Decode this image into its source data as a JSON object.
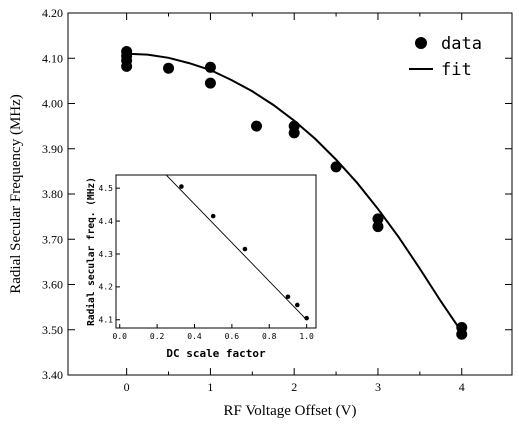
{
  "chart_data": [
    {
      "type": "scatter",
      "xlabel": "RF Voltage Offset (V)",
      "ylabel": "Radial Secular Frequency (MHz)",
      "xlim": [
        -0.7,
        4.6
      ],
      "ylim": [
        3.4,
        4.2
      ],
      "x_ticks": [
        0,
        1,
        2,
        3,
        4
      ],
      "y_ticks": [
        3.4,
        3.5,
        3.6,
        3.7,
        3.8,
        3.9,
        4.0,
        4.1,
        4.2
      ],
      "x_tick_labels": [
        "0",
        "1",
        "2",
        "3",
        "4"
      ],
      "y_tick_labels": [
        "3.40",
        "3.50",
        "3.60",
        "3.70",
        "3.80",
        "3.90",
        "4.00",
        "4.10",
        "4.20"
      ],
      "legend": {
        "placement": "top-right",
        "entries": [
          {
            "label": "data",
            "marker": "circle"
          },
          {
            "label": "fit",
            "marker": "line"
          }
        ]
      },
      "series": [
        {
          "name": "data",
          "style": "points",
          "x": [
            0,
            0,
            0,
            0,
            0.5,
            1,
            1,
            1.55,
            2,
            2,
            2.5,
            3,
            3,
            4,
            4
          ],
          "y": [
            4.115,
            4.105,
            4.095,
            4.082,
            4.078,
            4.08,
            4.045,
            3.95,
            3.95,
            3.935,
            3.86,
            3.745,
            3.728,
            3.505,
            3.49
          ]
        },
        {
          "name": "fit",
          "style": "line",
          "x": [
            0,
            0.25,
            0.5,
            0.75,
            1,
            1.25,
            1.5,
            1.75,
            2,
            2.25,
            2.5,
            2.75,
            3,
            3.25,
            3.5,
            3.75,
            4
          ],
          "y": [
            4.11,
            4.108,
            4.101,
            4.089,
            4.074,
            4.052,
            4.027,
            3.997,
            3.962,
            3.922,
            3.876,
            3.825,
            3.767,
            3.704,
            3.635,
            3.563,
            3.495
          ]
        }
      ],
      "grid": false,
      "ticks_mirrored": true
    },
    {
      "type": "scatter",
      "xlabel": "DC scale factor",
      "ylabel": "Radial secular freq. (MHz)",
      "xlim": [
        -0.02,
        1.05
      ],
      "ylim": [
        4.075,
        4.54
      ],
      "x_ticks": [
        0.0,
        0.2,
        0.4,
        0.6,
        0.8,
        1.0
      ],
      "y_ticks": [
        4.1,
        4.2,
        4.3,
        4.4,
        4.5
      ],
      "x_tick_labels": [
        "0.0",
        "0.2",
        "0.4",
        "0.6",
        "0.8",
        "1.0"
      ],
      "y_tick_labels": [
        "4.1",
        "4.2",
        "4.3",
        "4.4",
        "4.5"
      ],
      "series": [
        {
          "style": "points",
          "x": [
            0.33,
            0.5,
            0.67,
            0.9,
            0.95,
            1.0
          ],
          "y": [
            4.505,
            4.415,
            4.315,
            4.17,
            4.145,
            4.105
          ]
        },
        {
          "style": "line",
          "x": [
            0.24,
            1.0
          ],
          "y": [
            4.545,
            4.1
          ]
        }
      ],
      "grid": false
    }
  ]
}
